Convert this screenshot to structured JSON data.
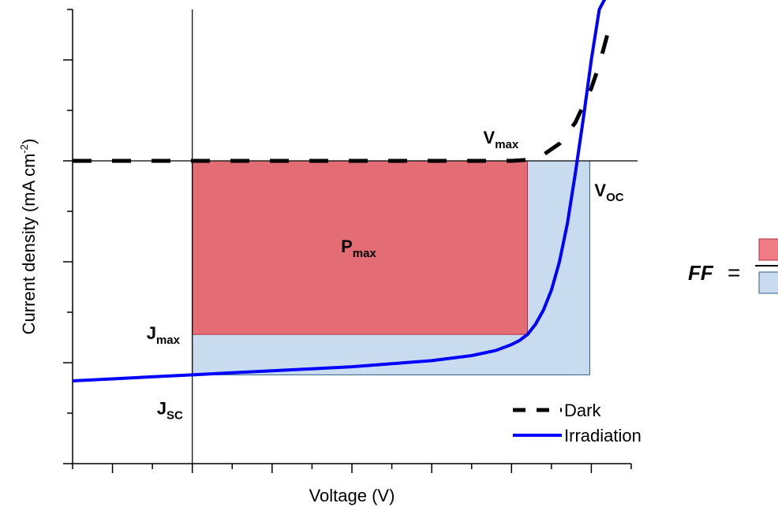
{
  "chart_data": {
    "type": "line",
    "title": "",
    "xlabel": "Voltage (V)",
    "ylabel_main": "Current density (mA cm",
    "ylabel_sup": "-2",
    "ylabel_tail": ")",
    "xlim": [
      -1.5,
      5.5
    ],
    "ylim": [
      -3,
      1.5
    ],
    "grid": false,
    "legend_position": "bottom-right",
    "legend": [
      {
        "name": "Dark",
        "style": "dashed",
        "color": "#000000"
      },
      {
        "name": "Irradiation",
        "style": "solid",
        "color": "#0000FF"
      }
    ],
    "series": [
      {
        "name": "Dark",
        "color": "#000000",
        "x": [
          -1.5,
          -1.0,
          0.0,
          1.0,
          2.0,
          3.0,
          4.0,
          4.2,
          4.4,
          4.6,
          4.8,
          5.0,
          5.1,
          5.2
        ],
        "y": [
          0.0,
          0.0,
          0.0,
          0.0,
          0.0,
          0.0,
          0.0,
          0.01,
          0.06,
          0.17,
          0.38,
          0.72,
          0.95,
          1.25
        ]
      },
      {
        "name": "Irradiation",
        "color": "#0000FF",
        "x": [
          -1.5,
          -1.0,
          -0.5,
          0.0,
          0.5,
          1.0,
          1.5,
          2.0,
          2.5,
          3.0,
          3.5,
          3.8,
          4.0,
          4.1,
          4.2,
          4.3,
          4.4,
          4.5,
          4.6,
          4.7,
          4.8,
          4.9,
          5.0,
          5.1,
          5.2
        ],
        "y": [
          -2.18,
          -2.16,
          -2.14,
          -2.12,
          -2.1,
          -2.08,
          -2.06,
          -2.04,
          -2.01,
          -1.98,
          -1.93,
          -1.88,
          -1.82,
          -1.78,
          -1.72,
          -1.62,
          -1.48,
          -1.28,
          -1.0,
          -0.62,
          -0.12,
          0.42,
          1.0,
          1.5,
          1.65
        ]
      }
    ],
    "rectangles": [
      {
        "label": "Vmax·Jmax",
        "x0": 0.0,
        "x1": 4.2,
        "y0": 0.0,
        "y1": -1.72,
        "color": "#E36C75"
      },
      {
        "label": "Voc·Jsc",
        "x0": 0.0,
        "x1": 4.98,
        "y0": 0.0,
        "y1": -2.12,
        "color": "#C9DCEF"
      }
    ],
    "annotations": {
      "pmax": {
        "main": "P",
        "sub": "max"
      },
      "vmax": {
        "main": "V",
        "sub": "max"
      },
      "voc": {
        "main": "V",
        "sub": "OC"
      },
      "jmax": {
        "main": "J",
        "sub": "max"
      },
      "jsc": {
        "main": "J",
        "sub": "SC"
      }
    },
    "formula": {
      "lhs": "FF",
      "eq": "="
    }
  },
  "colors": {
    "pmax_fill": "#E36C75",
    "pmax_stroke": "#B03040",
    "area_fill": "#C9DCEF",
    "area_stroke": "#2F5C8A",
    "dark": "#000000",
    "irradiation": "#0000FF"
  }
}
